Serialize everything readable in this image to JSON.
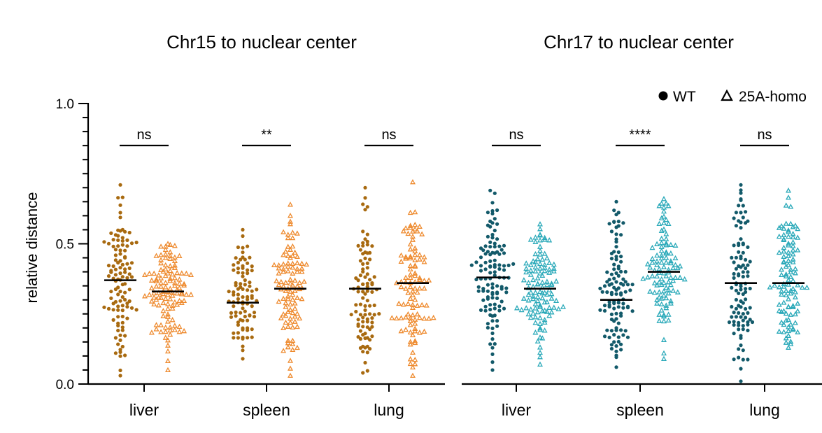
{
  "chart_data": {
    "type": "scatter",
    "subtype": "beeswarm",
    "ylabel": "relative distance",
    "ylim": [
      0.0,
      1.0
    ],
    "yticks": [
      {
        "value": 0.0,
        "label": "0.0"
      },
      {
        "value": 0.5,
        "label": "0.5"
      },
      {
        "value": 1.0,
        "label": "1.0"
      }
    ],
    "y_minor_tick_step": 0.05,
    "legend": {
      "placement": "top-right",
      "entries": [
        {
          "label": "WT",
          "marker": "filled-circle"
        },
        {
          "label": "25A-homo",
          "marker": "open-triangle"
        }
      ]
    },
    "panels": [
      {
        "title": "Chr15 to nuclear center",
        "colors": {
          "WT": "#a86a10",
          "25A-homo": "#ee8a2e"
        },
        "categories": [
          {
            "label": "liver",
            "significance": "ns",
            "groups": [
              {
                "series": "WT",
                "n": 110,
                "median": 0.37,
                "min": 0.03,
                "max": 0.71
              },
              {
                "series": "25A-homo",
                "n": 120,
                "median": 0.33,
                "min": 0.05,
                "max": 0.5
              }
            ]
          },
          {
            "label": "spleen",
            "significance": "**",
            "groups": [
              {
                "series": "WT",
                "n": 90,
                "median": 0.29,
                "min": 0.09,
                "max": 0.55
              },
              {
                "series": "25A-homo",
                "n": 100,
                "median": 0.34,
                "min": 0.03,
                "max": 0.64
              }
            ]
          },
          {
            "label": "lung",
            "significance": "ns",
            "groups": [
              {
                "series": "WT",
                "n": 95,
                "median": 0.34,
                "min": 0.04,
                "max": 0.7
              },
              {
                "series": "25A-homo",
                "n": 105,
                "median": 0.36,
                "min": 0.03,
                "max": 0.72
              }
            ]
          }
        ]
      },
      {
        "title": "Chr17 to nuclear center",
        "colors": {
          "WT": "#135a6a",
          "25A-homo": "#2aa9b9"
        },
        "categories": [
          {
            "label": "liver",
            "significance": "ns",
            "groups": [
              {
                "series": "WT",
                "n": 115,
                "median": 0.38,
                "min": 0.05,
                "max": 0.69
              },
              {
                "series": "25A-homo",
                "n": 115,
                "median": 0.34,
                "min": 0.07,
                "max": 0.57
              }
            ]
          },
          {
            "label": "spleen",
            "significance": "****",
            "groups": [
              {
                "series": "WT",
                "n": 110,
                "median": 0.3,
                "min": 0.06,
                "max": 0.65
              },
              {
                "series": "25A-homo",
                "n": 105,
                "median": 0.4,
                "min": 0.09,
                "max": 0.66
              }
            ]
          },
          {
            "label": "lung",
            "significance": "ns",
            "groups": [
              {
                "series": "WT",
                "n": 105,
                "median": 0.36,
                "min": 0.01,
                "max": 0.71
              },
              {
                "series": "25A-homo",
                "n": 105,
                "median": 0.36,
                "min": 0.13,
                "max": 0.69
              }
            ]
          }
        ]
      }
    ]
  }
}
